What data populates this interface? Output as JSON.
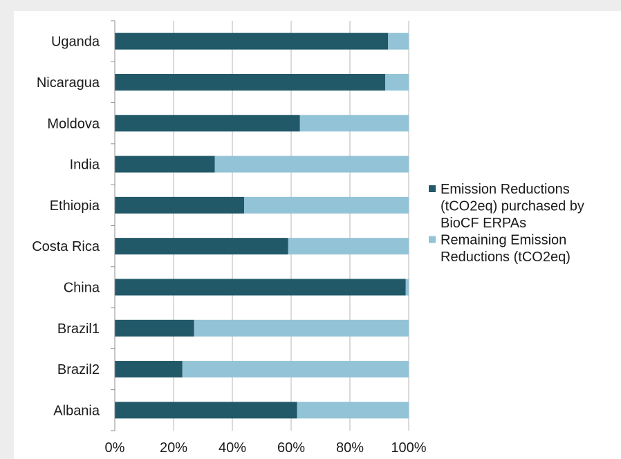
{
  "chart_data": {
    "type": "bar",
    "orientation": "horizontal",
    "stacked": true,
    "percent_stacked": true,
    "categories": [
      "Uganda",
      "Nicaragua",
      "Moldova",
      "India",
      "Ethiopia",
      "Costa Rica",
      "China",
      "Brazil1",
      "Brazil2",
      "Albania"
    ],
    "series": [
      {
        "name": "Emission Reductions (tCO2eq) purchased by BioCF ERPAs",
        "name_lines": [
          "Emission Reductions",
          "(tCO2eq) purchased by",
          "BioCF ERPAs"
        ],
        "color": "#215968",
        "values": [
          93,
          92,
          63,
          34,
          44,
          59,
          99,
          27,
          23,
          62
        ]
      },
      {
        "name": "Remaining Emission Reductions (tCO2eq)",
        "name_lines": [
          "Remaining Emission",
          "Reductions (tCO2eq)"
        ],
        "color": "#93c3d6",
        "values": [
          7,
          8,
          37,
          66,
          56,
          41,
          1,
          73,
          77,
          38
        ]
      }
    ],
    "xlim": [
      0,
      100
    ],
    "xticks": [
      "0%",
      "20%",
      "40%",
      "60%",
      "80%",
      "100%"
    ],
    "grid": true,
    "legend_position": "right",
    "title": "",
    "xlabel": "",
    "ylabel": ""
  }
}
